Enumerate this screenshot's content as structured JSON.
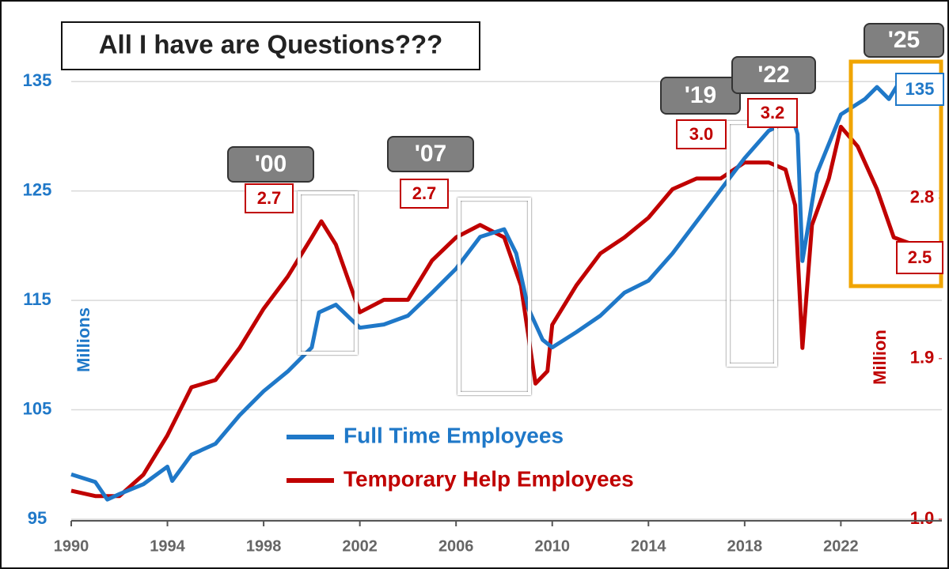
{
  "chart_data": {
    "type": "line",
    "title": "All I have are Questions???",
    "y_label": "Millions",
    "y2_label": "Million",
    "xlim": [
      1990,
      2026.2
    ],
    "xticks": [
      1990,
      1994,
      1998,
      2002,
      2006,
      2010,
      2014,
      2018,
      2022
    ],
    "ylim": [
      95,
      140
    ],
    "yticks": [
      95,
      105,
      115,
      125,
      135
    ],
    "y2lim": [
      1.0,
      3.76
    ],
    "y2ticks": [
      {
        "value": 1.0,
        "label": "1.0"
      },
      1.9,
      2.8
    ],
    "grid": true,
    "series": [
      {
        "name": "Full Time Employees",
        "color": "#1f78c8",
        "x": [
          1990,
          1991,
          1991.5,
          1992,
          1993,
          1994,
          1994.2,
          1995,
          1996,
          1997,
          1998,
          1999,
          2000,
          2000.3,
          2001,
          2002,
          2003,
          2004,
          2005,
          2006,
          2007,
          2008,
          2008.5,
          2009,
          2009.6,
          2010,
          2011,
          2012,
          2013,
          2014,
          2015,
          2016,
          2017,
          2018,
          2019,
          2020,
          2020.2,
          2020.4,
          2021,
          2022,
          2023,
          2023.5,
          2024,
          2024.5,
          2025,
          2025.5
        ],
        "values": [
          99.1,
          98.4,
          96.8,
          97.3,
          98.2,
          99.8,
          98.5,
          100.9,
          101.9,
          104.5,
          106.7,
          108.5,
          110.7,
          113.9,
          114.6,
          112.5,
          112.8,
          113.6,
          115.7,
          117.9,
          120.8,
          121.5,
          119.3,
          114.3,
          111.4,
          110.7,
          112.1,
          113.6,
          115.7,
          116.8,
          119.3,
          122.2,
          125.1,
          128.0,
          130.5,
          131.6,
          130.2,
          118.6,
          126.6,
          132.0,
          133.4,
          134.5,
          133.4,
          135.2,
          134.9,
          134.5
        ]
      },
      {
        "name": "Temporary Help Employees",
        "color": "#c00000",
        "axis": "y2",
        "x": [
          1990,
          1991,
          1992,
          1993,
          1994,
          1995,
          1996,
          1997,
          1998,
          1999,
          2000,
          2000.4,
          2001,
          2002,
          2003,
          2004,
          2005,
          2006,
          2007,
          2008,
          2008.7,
          2009.3,
          2009.8,
          2010,
          2011,
          2012,
          2013,
          2014,
          2015,
          2016,
          2017,
          2018,
          2019,
          2019.7,
          2020.1,
          2020.4,
          2020.8,
          2021.5,
          2022,
          2022.7,
          2023.5,
          2024.2,
          2025,
          2025.5
        ],
        "values": [
          1.16,
          1.13,
          1.13,
          1.25,
          1.47,
          1.74,
          1.78,
          1.96,
          2.18,
          2.36,
          2.58,
          2.67,
          2.54,
          2.16,
          2.23,
          2.23,
          2.45,
          2.58,
          2.65,
          2.58,
          2.31,
          1.76,
          1.83,
          2.09,
          2.31,
          2.49,
          2.58,
          2.69,
          2.85,
          2.91,
          2.91,
          3.0,
          3.0,
          2.96,
          2.76,
          1.96,
          2.65,
          2.91,
          3.2,
          3.09,
          2.85,
          2.58,
          2.54,
          2.49
        ]
      }
    ],
    "annotations": [
      {
        "label": "'00",
        "value": "2.7"
      },
      {
        "label": "'07",
        "value": "2.7"
      },
      {
        "label": "'19",
        "value": "3.0"
      },
      {
        "label": "'22",
        "value": "3.2"
      },
      {
        "label": "'25"
      }
    ],
    "end_labels": [
      "135",
      "2.5"
    ]
  }
}
